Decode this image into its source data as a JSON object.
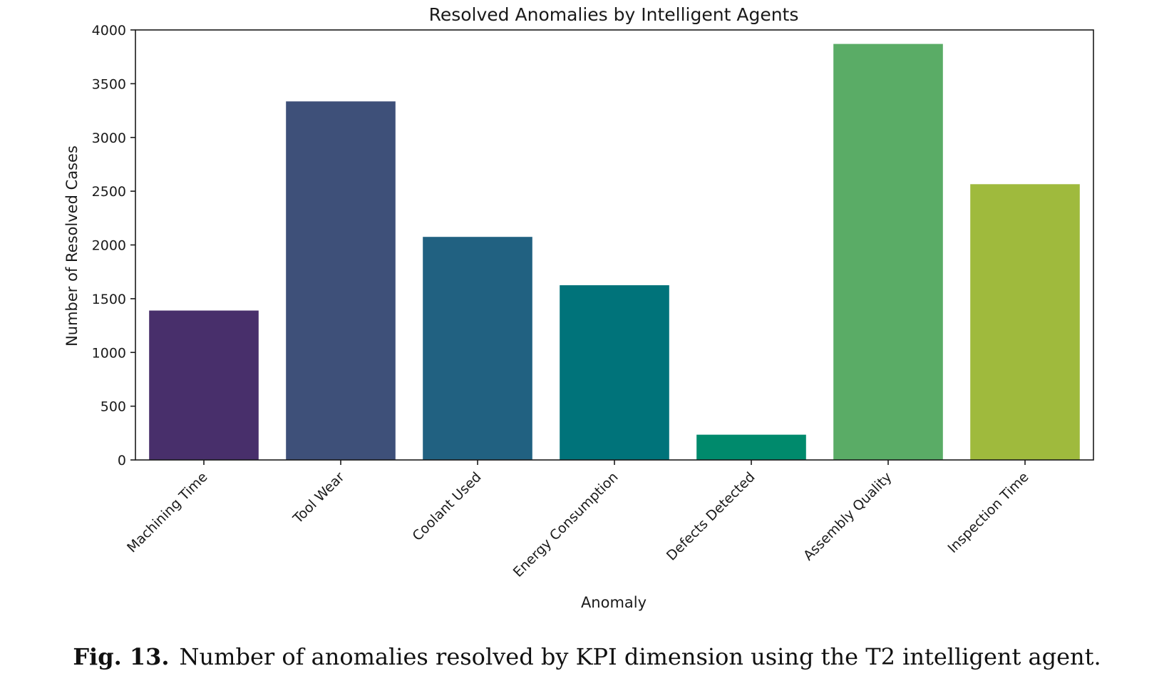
{
  "chart_data": {
    "type": "bar",
    "title": "Resolved Anomalies by Intelligent Agents",
    "xlabel": "Anomaly",
    "ylabel": "Number of Resolved Cases",
    "categories": [
      "Machining Time",
      "Tool Wear",
      "Coolant Used",
      "Energy Consumption",
      "Defects Detected",
      "Assembly Quality",
      "Inspection Time"
    ],
    "values": [
      1390,
      3335,
      2075,
      1625,
      235,
      3870,
      2565
    ],
    "colors": [
      "#482f6b",
      "#3e5079",
      "#216181",
      "#00737a",
      "#008a6c",
      "#5aac66",
      "#9fba3d"
    ],
    "ylim": [
      0,
      4000
    ],
    "yticks": [
      0,
      500,
      1000,
      1500,
      2000,
      2500,
      3000,
      3500,
      4000
    ],
    "grid": false
  },
  "caption": {
    "label": "Fig. 13.",
    "text": "Number of anomalies resolved by KPI dimension using the T2 intelligent agent."
  }
}
